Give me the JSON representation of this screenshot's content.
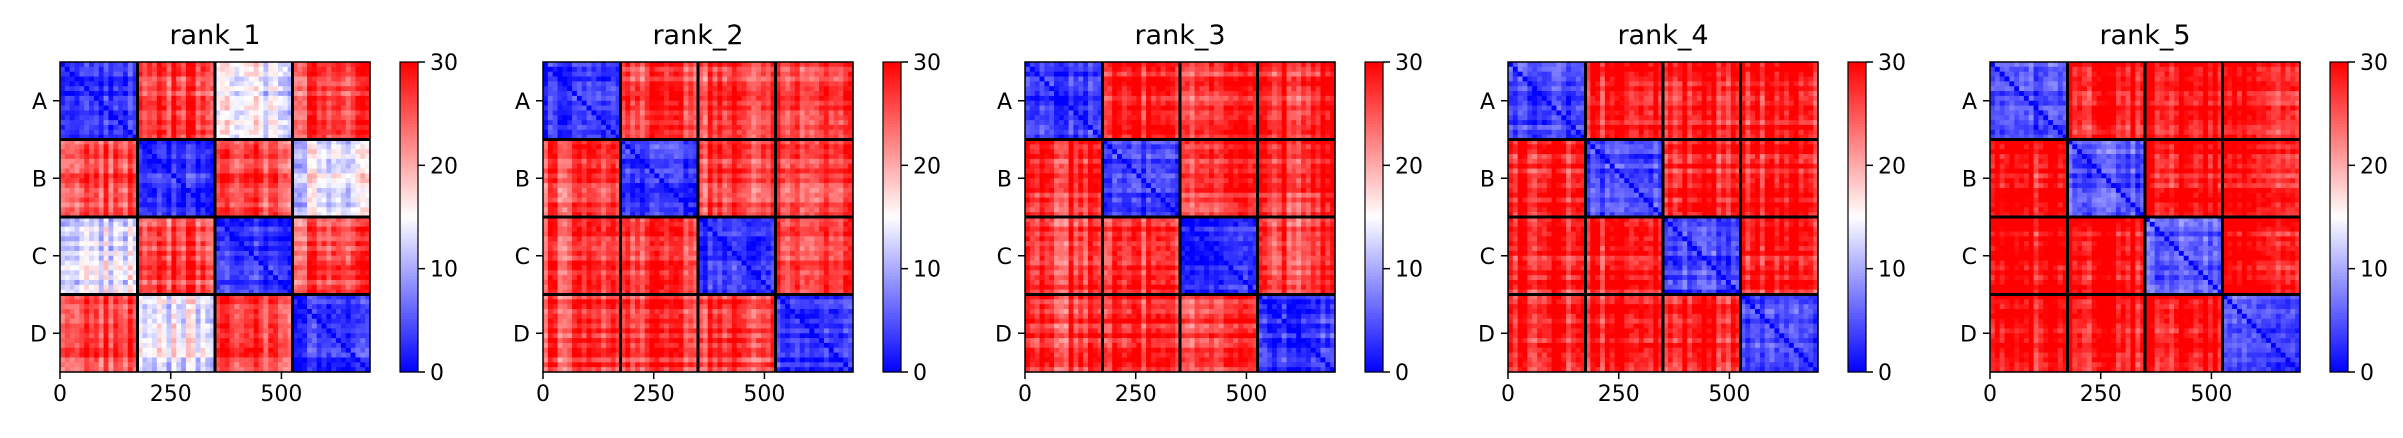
{
  "chart_data": {
    "type": "heatmap",
    "colormap": "bwr",
    "colors": {
      "low": "#0000ff",
      "mid": "#ffffff",
      "high": "#ff0000",
      "boundary": "#000000"
    },
    "vmin": 0,
    "vmax": 30,
    "colorbar_ticks": [
      "0",
      "10",
      "20",
      "30"
    ],
    "groups": [
      "A",
      "B",
      "C",
      "D"
    ],
    "x_ticks": [
      0,
      250,
      500
    ],
    "x_tick_labels": [
      "0",
      "250",
      "500"
    ],
    "n_items": 700,
    "group_boundaries": [
      0,
      175,
      350,
      525,
      700
    ],
    "panels": [
      {
        "title": "rank_1",
        "block_means": [
          [
            3,
            26,
            14,
            26
          ],
          [
            26,
            3,
            26,
            14
          ],
          [
            14,
            26,
            3,
            26
          ],
          [
            26,
            14,
            26,
            3
          ]
        ]
      },
      {
        "title": "rank_2",
        "block_means": [
          [
            3,
            26,
            26,
            26
          ],
          [
            26,
            3,
            26,
            26
          ],
          [
            26,
            26,
            3,
            26
          ],
          [
            26,
            26,
            26,
            3
          ]
        ]
      },
      {
        "title": "rank_3",
        "block_means": [
          [
            3,
            27,
            27,
            27
          ],
          [
            27,
            3,
            27,
            27
          ],
          [
            27,
            27,
            3,
            27
          ],
          [
            27,
            27,
            27,
            3
          ]
        ]
      },
      {
        "title": "rank_4",
        "block_means": [
          [
            4,
            28,
            28,
            28
          ],
          [
            28,
            4,
            28,
            28
          ],
          [
            28,
            28,
            4,
            28
          ],
          [
            28,
            28,
            28,
            4
          ]
        ]
      },
      {
        "title": "rank_5",
        "block_means": [
          [
            5,
            29,
            29,
            29
          ],
          [
            29,
            5,
            29,
            29
          ],
          [
            29,
            29,
            5,
            29
          ],
          [
            29,
            29,
            29,
            5
          ]
        ]
      }
    ]
  }
}
